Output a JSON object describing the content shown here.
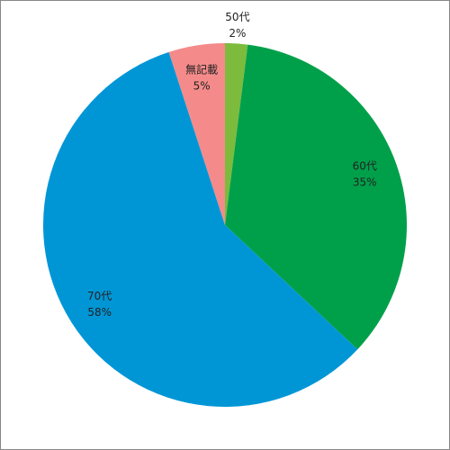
{
  "chart_data": {
    "type": "pie",
    "categories": [
      "50代",
      "60代",
      "70代",
      "無記載"
    ],
    "values": [
      2,
      35,
      58,
      5
    ],
    "value_labels": [
      "2%",
      "35%",
      "58%",
      "5%"
    ],
    "colors": [
      "#7cbb3c",
      "#00a04a",
      "#0096d6",
      "#f58a8a"
    ]
  }
}
